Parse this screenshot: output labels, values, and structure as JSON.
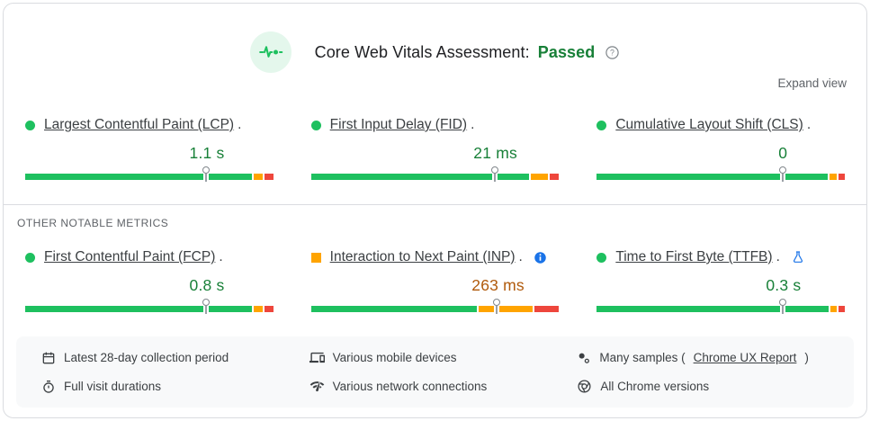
{
  "header": {
    "icon": "pulse-icon",
    "title": "Core Web Vitals Assessment:",
    "status": "Passed",
    "help_icon": "help-icon",
    "expand_label": "Expand view"
  },
  "section_label": "OTHER NOTABLE METRICS",
  "colors": {
    "good_text": "#188038",
    "average_text": "#b05a0c",
    "bar_good": "#1ec05f",
    "bar_average": "#ffa400",
    "bar_poor": "#ee463c",
    "bullet_good": "#1ec05f",
    "bullet_average": "#ffa400"
  },
  "core_metrics": [
    {
      "id": "lcp",
      "name": "Largest Contentful Paint (LCP)",
      "period": ".",
      "value": "1.1 s",
      "status": "good",
      "bullet_shape": "circle",
      "badge_icon": null,
      "distribution": {
        "good_pct": 91.5,
        "average_pct": 3.7,
        "poor_pct": 3.4
      },
      "marker_pct": 73
    },
    {
      "id": "fid",
      "name": "First Input Delay (FID)",
      "period": ".",
      "value": "21 ms",
      "status": "good",
      "bullet_shape": "circle",
      "badge_icon": null,
      "distribution": {
        "good_pct": 87.5,
        "average_pct": 6.8,
        "poor_pct": 3.6
      },
      "marker_pct": 74
    },
    {
      "id": "cls",
      "name": "Cumulative Layout Shift (CLS)",
      "period": ".",
      "value": "0",
      "status": "good",
      "bullet_shape": "circle",
      "badge_icon": null,
      "distribution": {
        "good_pct": 93,
        "average_pct": 2.9,
        "poor_pct": 2.5
      },
      "marker_pct": 75
    }
  ],
  "other_metrics": [
    {
      "id": "fcp",
      "name": "First Contentful Paint (FCP)",
      "period": ".",
      "value": "0.8 s",
      "status": "good",
      "bullet_shape": "circle",
      "badge_icon": null,
      "distribution": {
        "good_pct": 91,
        "average_pct": 3.8,
        "poor_pct": 3.4
      },
      "marker_pct": 73
    },
    {
      "id": "inp",
      "name": "Interaction to Next Paint (INP)",
      "period": ".",
      "value": "263 ms",
      "status": "average",
      "bullet_shape": "square",
      "badge_icon": "info-icon",
      "distribution": {
        "good_pct": 66.5,
        "average_pct": 21.5,
        "poor_pct": 10
      },
      "marker_pct": 75
    },
    {
      "id": "ttfb",
      "name": "Time to First Byte (TTFB)",
      "period": ".",
      "value": "0.3 s",
      "status": "good",
      "bullet_shape": "circle",
      "badge_icon": "flask-icon",
      "distribution": {
        "good_pct": 93,
        "average_pct": 2.7,
        "poor_pct": 2.4
      },
      "marker_pct": 75
    }
  ],
  "footer": {
    "items": [
      {
        "id": "collection-period",
        "icon": "calendar-icon",
        "text": "Latest 28-day collection period"
      },
      {
        "id": "mobile-devices",
        "icon": "devices-icon",
        "text": "Various mobile devices"
      },
      {
        "id": "samples",
        "icon": "samples-icon",
        "prefix": "Many samples (",
        "link_text": "Chrome UX Report",
        "suffix": ")"
      },
      {
        "id": "visit-durations",
        "icon": "stopwatch-icon",
        "text": "Full visit durations"
      },
      {
        "id": "network",
        "icon": "network-icon",
        "text": "Various network connections"
      },
      {
        "id": "chrome-versions",
        "icon": "chrome-icon",
        "text": "All Chrome versions"
      }
    ]
  }
}
